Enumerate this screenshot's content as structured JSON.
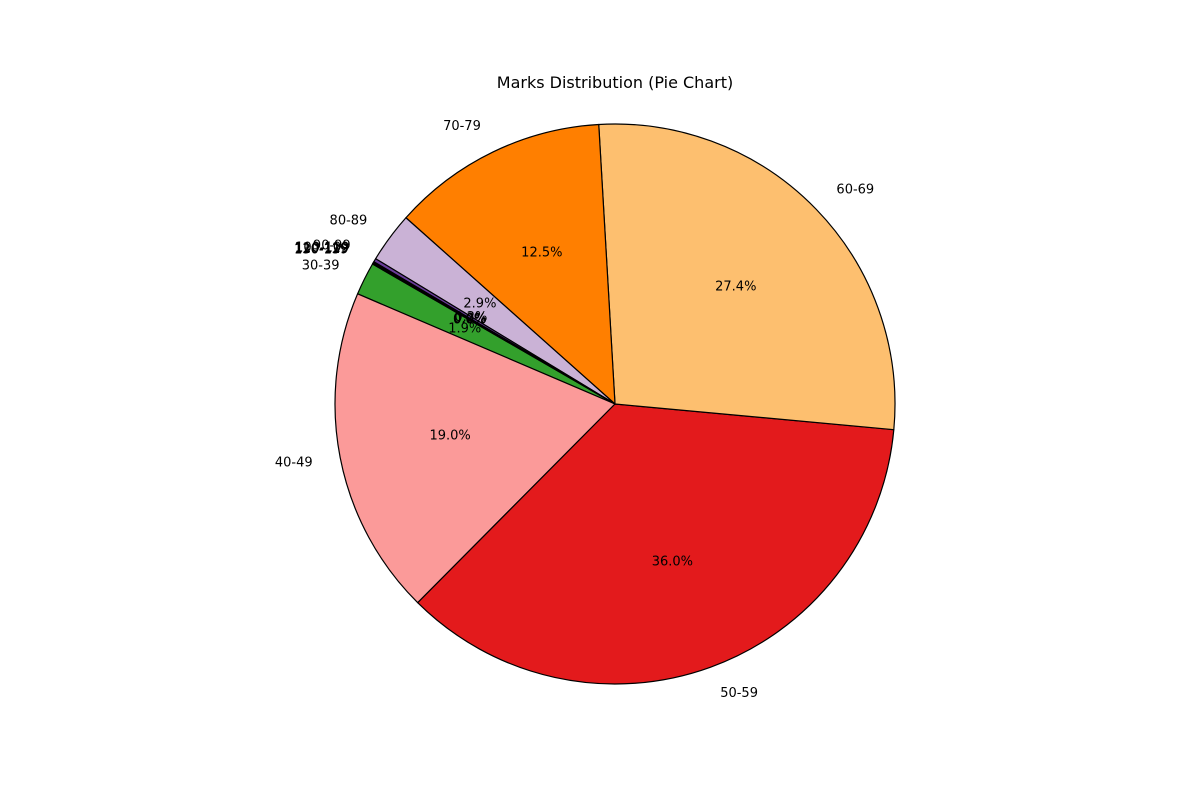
{
  "chart_data": {
    "type": "pie",
    "title": "Marks Distribution (Pie Chart)",
    "categories": [
      "30-39",
      "40-49",
      "50-59",
      "60-69",
      "70-79",
      "80-89",
      "90-99",
      "100-109",
      "110-119",
      "120-129",
      "130-139"
    ],
    "values": [
      1.9,
      19.0,
      36.0,
      27.4,
      12.5,
      2.9,
      0.2,
      0.05,
      0.05,
      0.03,
      0.02
    ],
    "value_labels": [
      "1.9%",
      "19.0%",
      "36.0%",
      "27.4%",
      "12.5%",
      "2.9%",
      "0.2%",
      "0.0%",
      "0.0%",
      "0.0%",
      "0.0%"
    ],
    "colors": [
      "#33a02c",
      "#fb9a99",
      "#e31a1c",
      "#fdbf6f",
      "#ff7f00",
      "#cab2d6",
      "#6a3d9a",
      "#ffff99",
      "#b15928",
      "#a6cee3",
      "#1f78b4"
    ],
    "start_angle_deg": 150,
    "direction": "counterclockwise",
    "edge_color": "#000000"
  }
}
